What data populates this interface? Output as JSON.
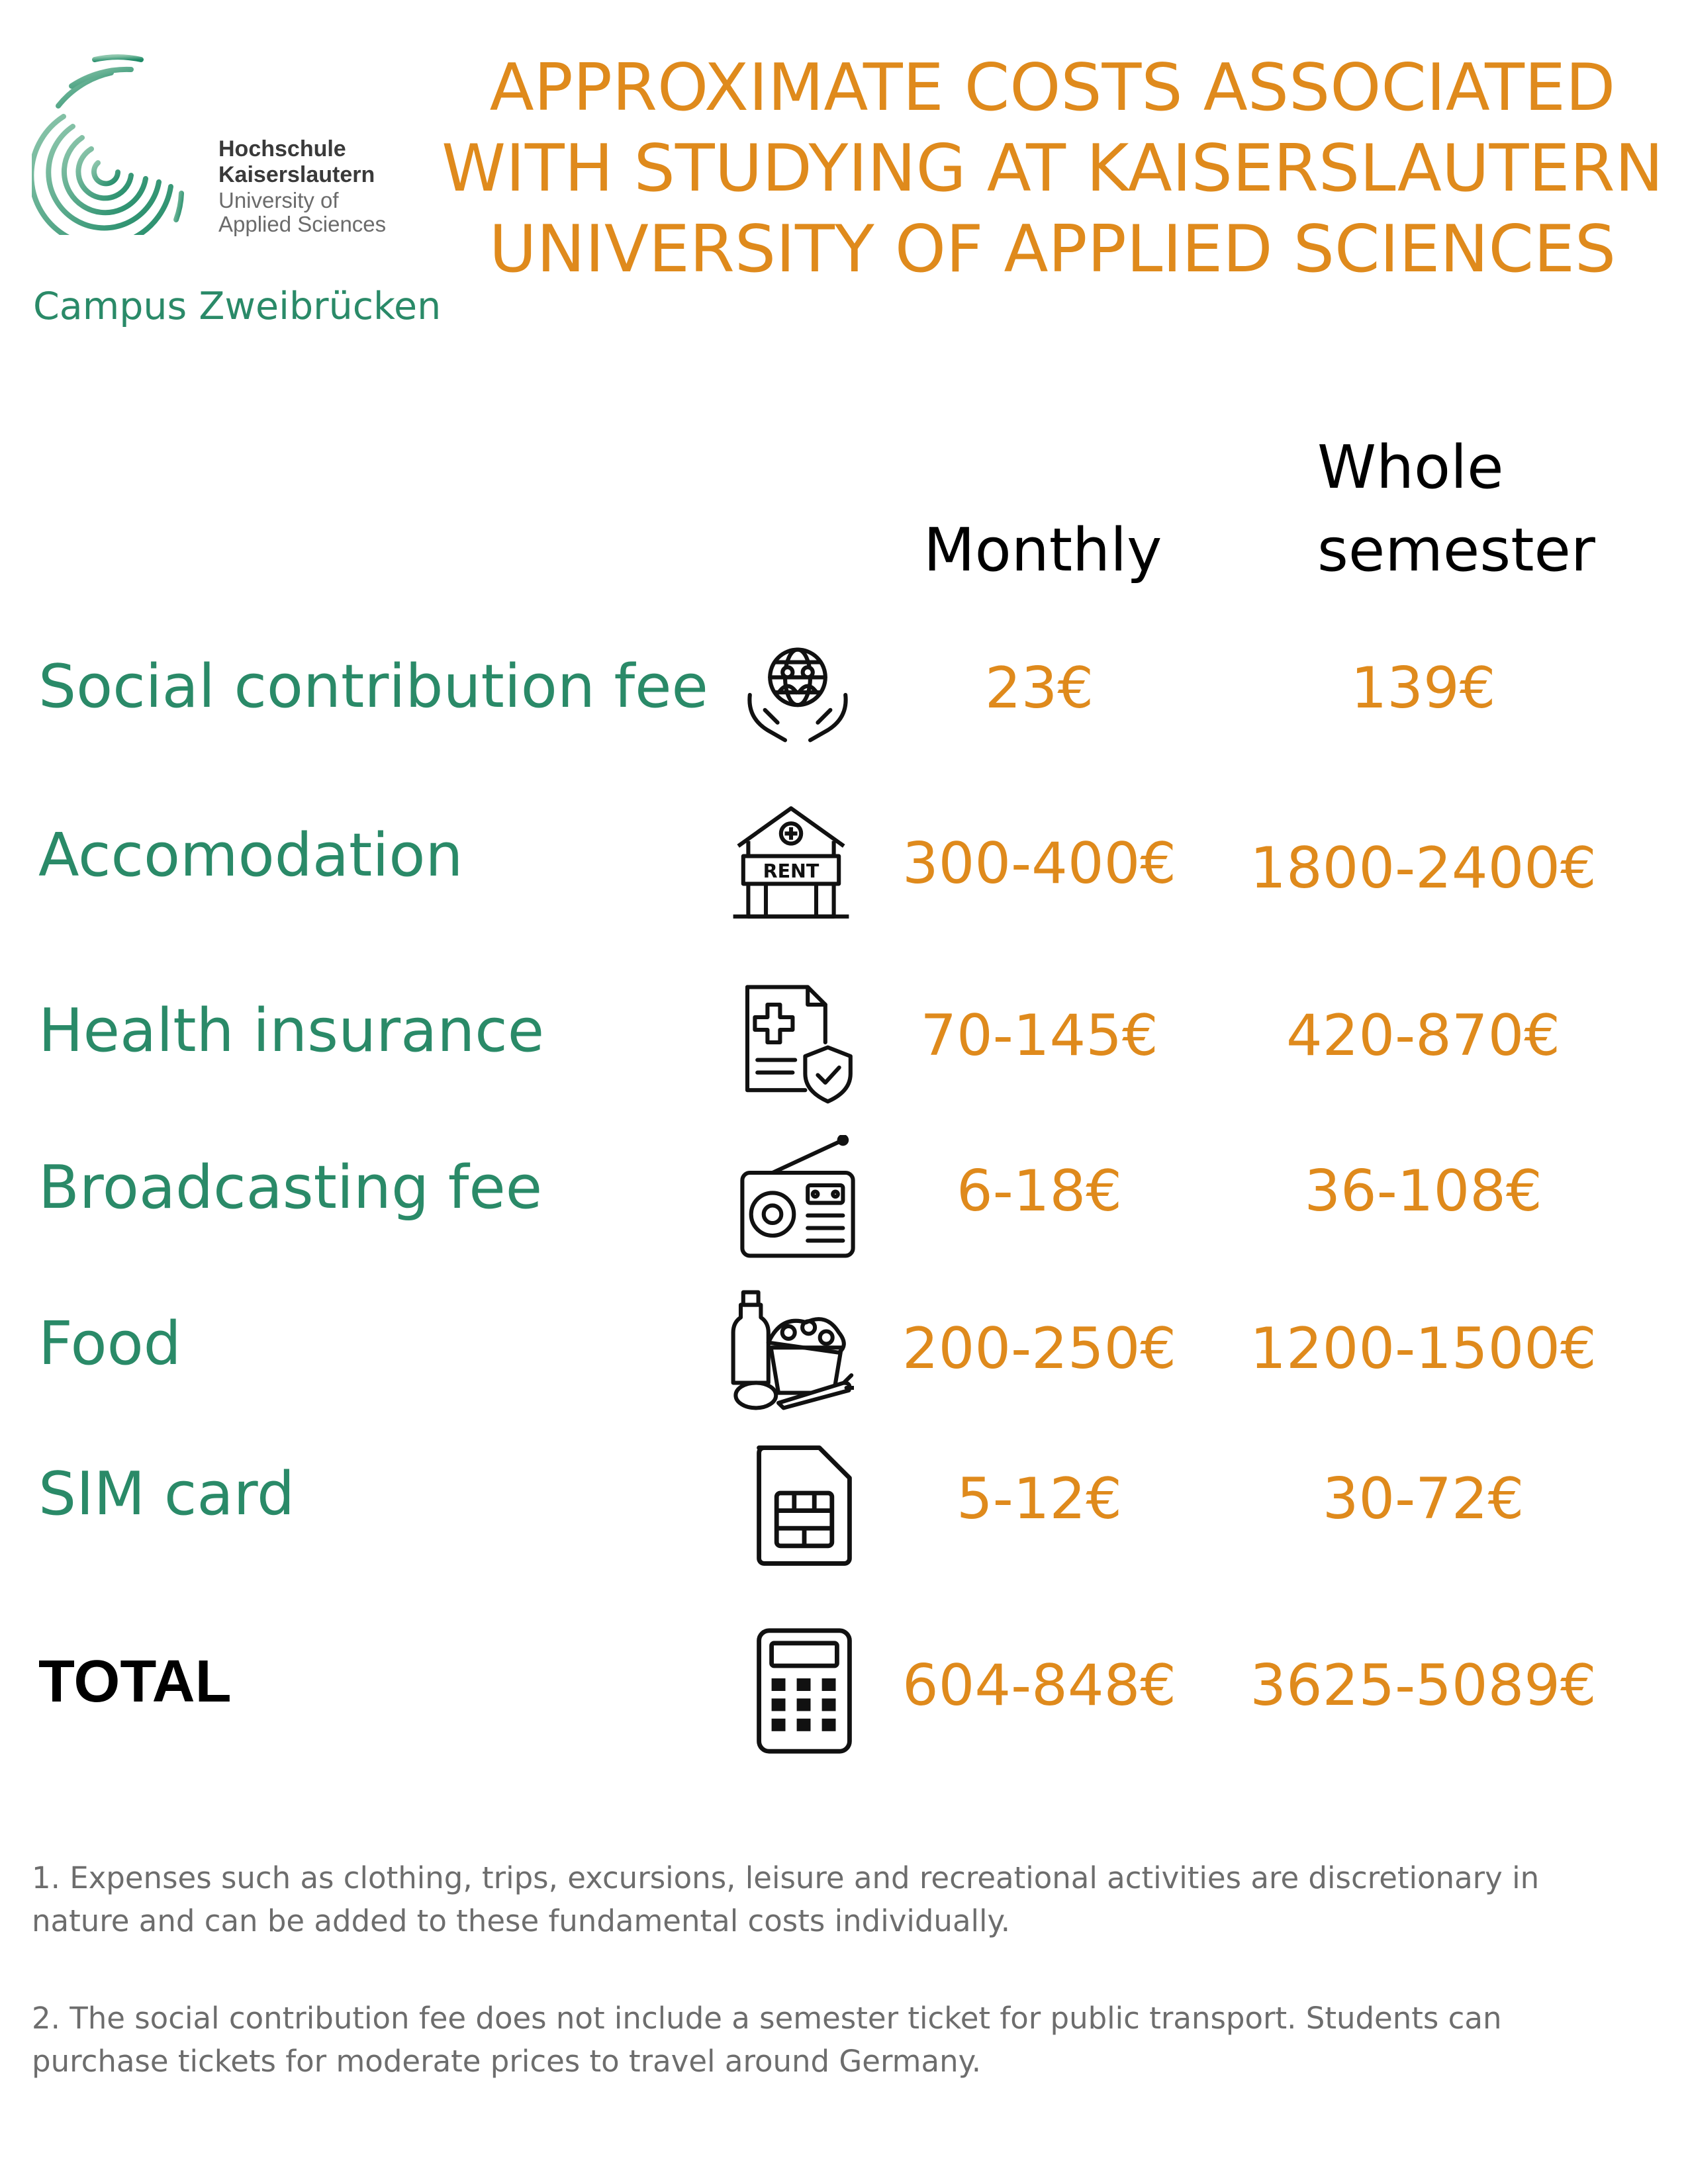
{
  "logo": {
    "line1": "Hochschule",
    "line2": "Kaiserslautern",
    "line3": "University of",
    "line4": "Applied Sciences",
    "campus": "Campus Zweibrücken"
  },
  "title": {
    "line1": "APPROXIMATE COSTS ASSOCIATED",
    "line2": "WITH STUDYING AT KAISERSLAUTERN",
    "line3": "UNIVERSITY OF APPLIED SCIENCES"
  },
  "columns": {
    "monthly": "Monthly",
    "semester_line1": "Whole",
    "semester_line2": "semester"
  },
  "rows": [
    {
      "label": "Social contribution fee",
      "icon": "global-community-hands-icon",
      "monthly": "23€",
      "semester": "139€"
    },
    {
      "label": "Accomodation",
      "icon": "rent-house-icon",
      "monthly": "300-400€",
      "semester": "1800-2400€"
    },
    {
      "label": "Health insurance",
      "icon": "medical-document-shield-icon",
      "monthly": "70-145€",
      "semester": "420-870€"
    },
    {
      "label": "Broadcasting fee",
      "icon": "radio-icon",
      "monthly": "6-18€",
      "semester": "36-108€"
    },
    {
      "label": "Food",
      "icon": "groceries-icon",
      "monthly": "200-250€",
      "semester": "1200-1500€"
    },
    {
      "label": "SIM card",
      "icon": "sim-card-icon",
      "monthly": "5-12€",
      "semester": "30-72€"
    }
  ],
  "total": {
    "label": "TOTAL",
    "icon": "calculator-icon",
    "monthly": "604-848€",
    "semester": "3625-5089€"
  },
  "notes": [
    "1. Expenses such as clothing, trips, excursions, leisure and recreational activities are discretionary in nature and can be added to these fundamental costs individually.",
    "2. The social contribution fee does not include a semester ticket for public transport. Students can purchase tickets for moderate prices to travel around Germany."
  ],
  "colors": {
    "accent": "#df8a1c",
    "green": "#2a8a68",
    "note": "#6d6d6d"
  }
}
